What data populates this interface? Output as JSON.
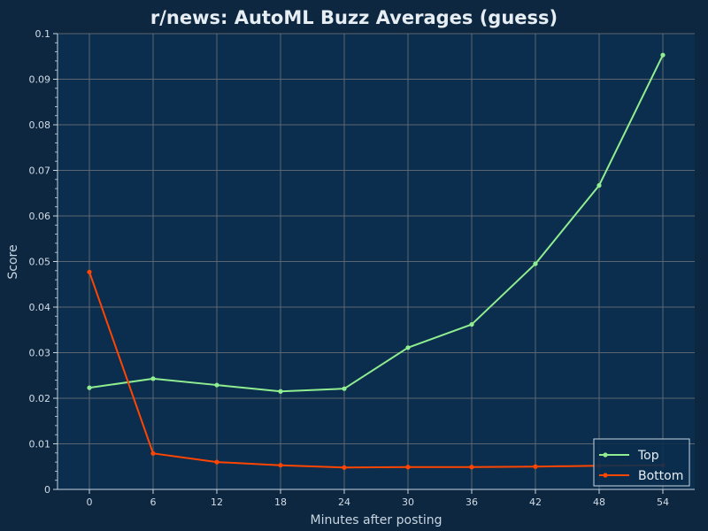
{
  "chart_data": {
    "type": "line",
    "title": "r/news: AutoML Buzz Averages (guess)",
    "xlabel": "Minutes after posting",
    "ylabel": "Score",
    "x": [
      0,
      6,
      12,
      18,
      24,
      30,
      36,
      42,
      48,
      54
    ],
    "xticks": [
      "0",
      "6",
      "12",
      "18",
      "24",
      "30",
      "36",
      "42",
      "48",
      "54"
    ],
    "xlim": [
      -3,
      57
    ],
    "yticks": [
      "0",
      "0.01",
      "0.02",
      "0.03",
      "0.04",
      "0.05",
      "0.06",
      "0.07",
      "0.08",
      "0.09",
      "0.1"
    ],
    "ytick_values": [
      0,
      0.01,
      0.02,
      0.03,
      0.04,
      0.05,
      0.06,
      0.07,
      0.08,
      0.09,
      0.1
    ],
    "ylim": [
      0,
      0.1
    ],
    "grid": true,
    "legend_position": "bottom-right",
    "series": [
      {
        "name": "Top",
        "color": "#90ee90",
        "values": [
          0.0223,
          0.0243,
          0.0229,
          0.0215,
          0.0221,
          0.0311,
          0.0362,
          0.0495,
          0.0667,
          0.0953
        ]
      },
      {
        "name": "Bottom",
        "color": "#ff4500",
        "values": [
          0.0477,
          0.0079,
          0.006,
          0.0053,
          0.0048,
          0.0049,
          0.0049,
          0.005,
          0.0052,
          0.0053
        ]
      }
    ]
  },
  "colors": {
    "background": "#0d2740",
    "plot_background": "#0b2e4e",
    "grid": "#5c6670",
    "axis": "#c9d6e2"
  }
}
